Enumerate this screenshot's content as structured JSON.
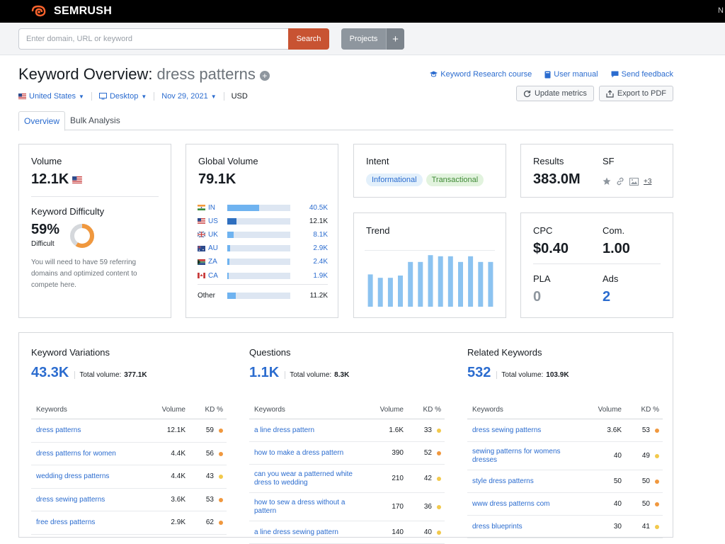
{
  "app": {
    "brand": "SEMRUSH",
    "corner_letter": "N"
  },
  "search": {
    "placeholder": "Enter domain, URL or keyword",
    "button": "Search",
    "projects": "Projects",
    "plus": "+"
  },
  "header": {
    "title": "Keyword Overview:",
    "keyword": "dress patterns",
    "add_symbol": "+"
  },
  "links": [
    "Keyword Research course",
    "User manual",
    "Send feedback"
  ],
  "filters": {
    "country": "United States",
    "device": "Desktop",
    "date": "Nov 29, 2021",
    "currency": "USD"
  },
  "actions": {
    "update": "Update metrics",
    "export": "Export to PDF"
  },
  "tabs": [
    "Overview",
    "Bulk Analysis"
  ],
  "volume": {
    "label": "Volume",
    "value": "12.1K"
  },
  "difficulty": {
    "label": "Keyword Difficulty",
    "value": "59%",
    "level": "Difficult",
    "percent": 59,
    "note": "You will need to have 59 referring domains and optimized content to compete here."
  },
  "global_volume": {
    "label": "Global Volume",
    "value": "79.1K",
    "countries": [
      {
        "code": "IN",
        "value": "40.5K",
        "share": 0.51,
        "color": "#6fb3f0"
      },
      {
        "code": "US",
        "value": "12.1K",
        "share": 0.15,
        "color": "#2f6fbf"
      },
      {
        "code": "UK",
        "value": "8.1K",
        "share": 0.1,
        "color": "#6fb3f0"
      },
      {
        "code": "AU",
        "value": "2.9K",
        "share": 0.04,
        "color": "#6fb3f0"
      },
      {
        "code": "ZA",
        "value": "2.4K",
        "share": 0.03,
        "color": "#6fb3f0"
      },
      {
        "code": "CA",
        "value": "1.9K",
        "share": 0.025,
        "color": "#6fb3f0"
      }
    ],
    "other": {
      "label": "Other",
      "value": "11.2K",
      "share": 0.14
    }
  },
  "intent": {
    "label": "Intent",
    "chips": [
      "Informational",
      "Transactional"
    ]
  },
  "results": {
    "label": "Results",
    "value": "383.0M",
    "sf_label": "SF",
    "sf_more": "+3"
  },
  "trend": {
    "label": "Trend",
    "values": [
      0.57,
      0.51,
      0.51,
      0.55,
      0.79,
      0.79,
      0.91,
      0.89,
      0.89,
      0.79,
      0.89,
      0.79,
      0.79
    ]
  },
  "cpc": {
    "cpc_label": "CPC",
    "cpc_value": "$0.40",
    "com_label": "Com.",
    "com_value": "1.00",
    "pla_label": "PLA",
    "pla_value": "0",
    "ads_label": "Ads",
    "ads_value": "2"
  },
  "kw_columns": {
    "keywords": "Keywords",
    "volume": "Volume",
    "kd": "KD %"
  },
  "variations": {
    "title": "Keyword Variations",
    "count": "43.3K",
    "total_label": "Total volume:",
    "total": "377.1K",
    "rows": [
      {
        "kw": "dress patterns",
        "vol": "12.1K",
        "kd": "59",
        "dot": "#f0983e"
      },
      {
        "kw": "dress patterns for women",
        "vol": "4.4K",
        "kd": "56",
        "dot": "#f0983e"
      },
      {
        "kw": "wedding dress patterns",
        "vol": "4.4K",
        "kd": "43",
        "dot": "#f2c94c"
      },
      {
        "kw": "dress sewing patterns",
        "vol": "3.6K",
        "kd": "53",
        "dot": "#f0983e"
      },
      {
        "kw": "free dress patterns",
        "vol": "2.9K",
        "kd": "62",
        "dot": "#f0983e"
      }
    ]
  },
  "questions": {
    "title": "Questions",
    "count": "1.1K",
    "total_label": "Total volume:",
    "total": "8.3K",
    "rows": [
      {
        "kw": "a line dress pattern",
        "vol": "1.6K",
        "kd": "33",
        "dot": "#f2c94c"
      },
      {
        "kw": "how to make a dress pattern",
        "vol": "390",
        "kd": "52",
        "dot": "#f0983e"
      },
      {
        "kw": "can you wear a patterned white dress to wedding",
        "vol": "210",
        "kd": "42",
        "dot": "#f2c94c"
      },
      {
        "kw": "how to sew a dress without a pattern",
        "vol": "170",
        "kd": "36",
        "dot": "#f2c94c"
      },
      {
        "kw": "a line dress sewing pattern",
        "vol": "140",
        "kd": "40",
        "dot": "#f2c94c"
      }
    ]
  },
  "related": {
    "title": "Related Keywords",
    "count": "532",
    "total_label": "Total volume:",
    "total": "103.9K",
    "rows": [
      {
        "kw": "dress sewing patterns",
        "vol": "3.6K",
        "kd": "53",
        "dot": "#f0983e"
      },
      {
        "kw": "sewing patterns for womens dresses",
        "vol": "40",
        "kd": "49",
        "dot": "#f2c94c"
      },
      {
        "kw": "style dress patterns",
        "vol": "50",
        "kd": "50",
        "dot": "#f0983e"
      },
      {
        "kw": "www dress patterns com",
        "vol": "40",
        "kd": "50",
        "dot": "#f0983e"
      },
      {
        "kw": "dress blueprints",
        "vol": "30",
        "kd": "41",
        "dot": "#f2c94c"
      }
    ]
  }
}
